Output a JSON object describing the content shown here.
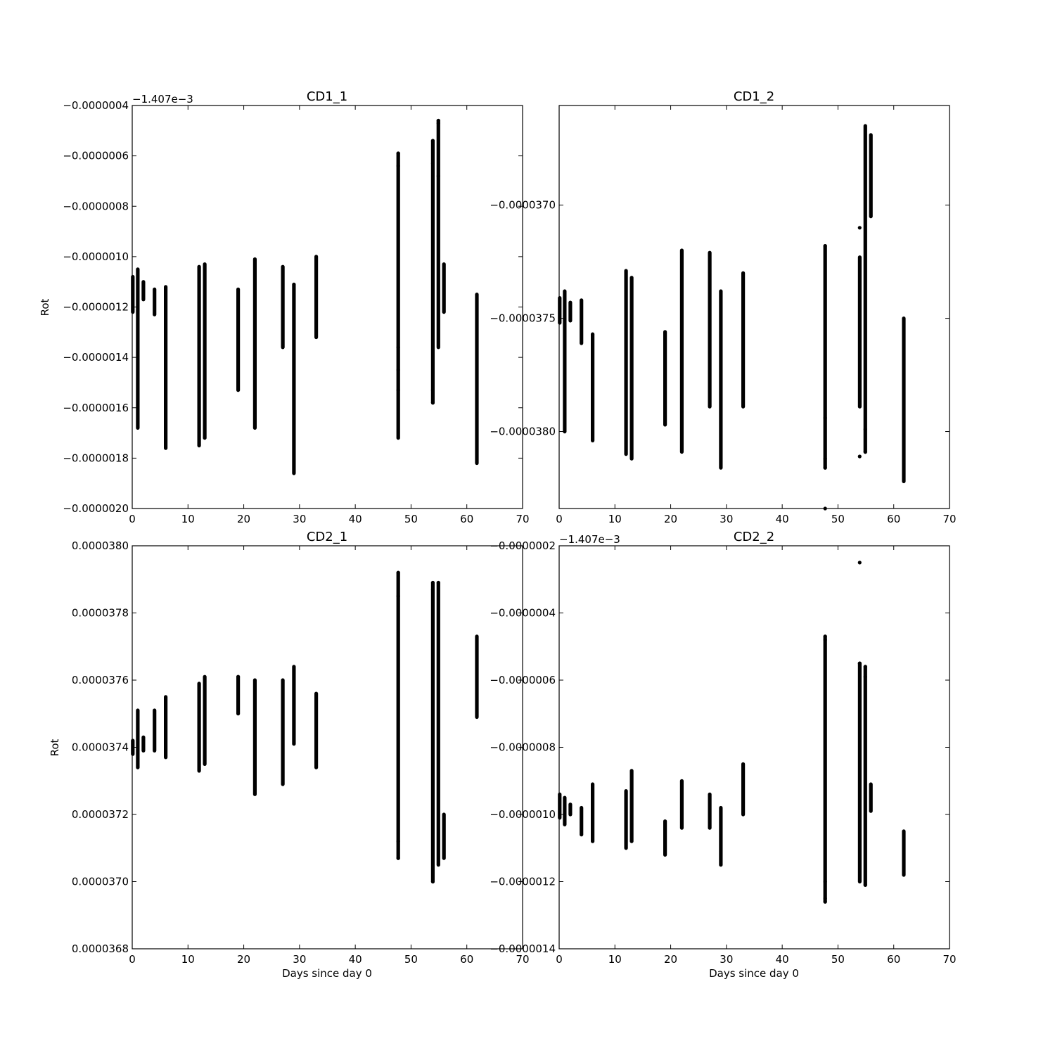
{
  "figure": {
    "background": "#ffffff",
    "marker_color": "#000000"
  },
  "chart_data": [
    {
      "type": "scatter",
      "title": "CD1_1",
      "xlabel": "",
      "ylabel": "Rot",
      "offset_text": "−1.407e−3",
      "xlim": [
        0,
        70
      ],
      "ylim": [
        -2e-06,
        -4e-07
      ],
      "xticks": [
        0,
        10,
        20,
        30,
        40,
        50,
        60,
        70
      ],
      "xtick_labels": [
        "0",
        "10",
        "20",
        "30",
        "40",
        "50",
        "60",
        "70"
      ],
      "yticks": [
        -2e-06,
        -1.8e-06,
        -1.6e-06,
        -1.4e-06,
        -1.2e-06,
        -1e-06,
        -8e-07,
        -6e-07,
        -4e-07
      ],
      "ytick_labels": [
        "−0.0000020",
        "−0.0000018",
        "−0.0000016",
        "−0.0000014",
        "−0.0000012",
        "−0.0000010",
        "−0.0000008",
        "−0.0000006",
        "−0.0000004"
      ],
      "grid": false,
      "columns": [
        {
          "x": 0.1,
          "ymin": -1.22e-06,
          "ymax": -1.08e-06,
          "extra": []
        },
        {
          "x": 1.0,
          "ymin": -1.68e-06,
          "ymax": -1.05e-06,
          "extra": []
        },
        {
          "x": 2.0,
          "ymin": -1.17e-06,
          "ymax": -1.1e-06,
          "extra": []
        },
        {
          "x": 4.0,
          "ymin": -1.23e-06,
          "ymax": -1.13e-06,
          "extra": []
        },
        {
          "x": 6.0,
          "ymin": -1.76e-06,
          "ymax": -1.12e-06,
          "extra": []
        },
        {
          "x": 12.0,
          "ymin": -1.75e-06,
          "ymax": -1.04e-06,
          "extra": []
        },
        {
          "x": 13.0,
          "ymin": -1.72e-06,
          "ymax": -1.03e-06,
          "extra": []
        },
        {
          "x": 19.0,
          "ymin": -1.53e-06,
          "ymax": -1.13e-06,
          "extra": []
        },
        {
          "x": 22.0,
          "ymin": -1.68e-06,
          "ymax": -1.01e-06,
          "extra": []
        },
        {
          "x": 27.0,
          "ymin": -1.36e-06,
          "ymax": -1.04e-06,
          "extra": []
        },
        {
          "x": 29.0,
          "ymin": -1.86e-06,
          "ymax": -1.11e-06,
          "extra": []
        },
        {
          "x": 33.0,
          "ymin": -1.32e-06,
          "ymax": -1e-06,
          "extra": []
        },
        {
          "x": 47.7,
          "ymin": -1.72e-06,
          "ymax": -5.9e-07,
          "extra": [
            -5.9e-07,
            -6.4e-07,
            -1.36e-06,
            -1.45e-06,
            -1.53e-06
          ]
        },
        {
          "x": 53.9,
          "ymin": -1.58e-06,
          "ymax": -5.4e-07,
          "extra": [
            -5.4e-07,
            -6.3e-07,
            -1.53e-06,
            -1.58e-06
          ]
        },
        {
          "x": 54.9,
          "ymin": -1.36e-06,
          "ymax": -4.6e-07,
          "extra": [
            -4.6e-07,
            -4.7e-07,
            -6.8e-07
          ]
        },
        {
          "x": 55.9,
          "ymin": -1.22e-06,
          "ymax": -1.03e-06,
          "extra": []
        },
        {
          "x": 61.8,
          "ymin": -1.82e-06,
          "ymax": -1.15e-06,
          "extra": []
        }
      ]
    },
    {
      "type": "scatter",
      "title": "CD1_2",
      "xlabel": "",
      "ylabel": "",
      "offset_text": "",
      "xlim": [
        0,
        70
      ],
      "ylim": [
        -3.834e-05,
        -3.656e-05
      ],
      "xticks": [
        0,
        10,
        20,
        30,
        40,
        50,
        60,
        70
      ],
      "xtick_labels": [
        "0",
        "10",
        "20",
        "30",
        "40",
        "50",
        "60",
        "70"
      ],
      "yticks": [
        -3.8e-05,
        -3.75e-05,
        -3.7e-05
      ],
      "ytick_labels": [
        "−0.0000380",
        "−0.0000375",
        "−0.0000370"
      ],
      "grid": false,
      "columns": [
        {
          "x": 0.1,
          "ymin": -3.752e-05,
          "ymax": -3.741e-05,
          "extra": []
        },
        {
          "x": 1.0,
          "ymin": -3.8e-05,
          "ymax": -3.738e-05,
          "extra": []
        },
        {
          "x": 2.0,
          "ymin": -3.751e-05,
          "ymax": -3.743e-05,
          "extra": []
        },
        {
          "x": 4.0,
          "ymin": -3.761e-05,
          "ymax": -3.742e-05,
          "extra": []
        },
        {
          "x": 6.0,
          "ymin": -3.804e-05,
          "ymax": -3.757e-05,
          "extra": []
        },
        {
          "x": 12.0,
          "ymin": -3.81e-05,
          "ymax": -3.729e-05,
          "extra": []
        },
        {
          "x": 13.0,
          "ymin": -3.812e-05,
          "ymax": -3.732e-05,
          "extra": []
        },
        {
          "x": 19.0,
          "ymin": -3.797e-05,
          "ymax": -3.756e-05,
          "extra": []
        },
        {
          "x": 22.0,
          "ymin": -3.809e-05,
          "ymax": -3.72e-05,
          "extra": []
        },
        {
          "x": 27.0,
          "ymin": -3.789e-05,
          "ymax": -3.721e-05,
          "extra": []
        },
        {
          "x": 29.0,
          "ymin": -3.816e-05,
          "ymax": -3.738e-05,
          "extra": []
        },
        {
          "x": 33.0,
          "ymin": -3.789e-05,
          "ymax": -3.73e-05,
          "extra": []
        },
        {
          "x": 47.7,
          "ymin": -3.816e-05,
          "ymax": -3.718e-05,
          "extra": [
            -3.718e-05,
            -3.834e-05,
            -3.794e-05,
            -3.812e-05,
            -3.816e-05
          ]
        },
        {
          "x": 53.9,
          "ymin": -3.789e-05,
          "ymax": -3.723e-05,
          "extra": [
            -3.71e-05,
            -3.811e-05
          ]
        },
        {
          "x": 54.9,
          "ymin": -3.809e-05,
          "ymax": -3.665e-05,
          "extra": [
            -3.799e-05,
            -3.809e-05
          ]
        },
        {
          "x": 55.9,
          "ymin": -3.705e-05,
          "ymax": -3.669e-05,
          "extra": []
        },
        {
          "x": 61.8,
          "ymin": -3.822e-05,
          "ymax": -3.75e-05,
          "extra": []
        }
      ]
    },
    {
      "type": "scatter",
      "title": "CD2_1",
      "xlabel": "Days since day 0",
      "ylabel": "Rot",
      "offset_text": "",
      "xlim": [
        0,
        70
      ],
      "ylim": [
        3.68e-05,
        3.8e-05
      ],
      "xticks": [
        0,
        10,
        20,
        30,
        40,
        50,
        60,
        70
      ],
      "xtick_labels": [
        "0",
        "10",
        "20",
        "30",
        "40",
        "50",
        "60",
        "70"
      ],
      "yticks": [
        3.68e-05,
        3.7e-05,
        3.72e-05,
        3.74e-05,
        3.76e-05,
        3.78e-05,
        3.8e-05
      ],
      "ytick_labels": [
        "0.0000368",
        "0.0000370",
        "0.0000372",
        "0.0000374",
        "0.0000376",
        "0.0000378",
        "0.0000380"
      ],
      "grid": false,
      "columns": [
        {
          "x": 0.1,
          "ymin": 3.738e-05,
          "ymax": 3.742e-05,
          "extra": []
        },
        {
          "x": 1.0,
          "ymin": 3.734e-05,
          "ymax": 3.751e-05,
          "extra": []
        },
        {
          "x": 2.0,
          "ymin": 3.739e-05,
          "ymax": 3.743e-05,
          "extra": []
        },
        {
          "x": 4.0,
          "ymin": 3.739e-05,
          "ymax": 3.751e-05,
          "extra": []
        },
        {
          "x": 6.0,
          "ymin": 3.737e-05,
          "ymax": 3.755e-05,
          "extra": []
        },
        {
          "x": 12.0,
          "ymin": 3.733e-05,
          "ymax": 3.759e-05,
          "extra": []
        },
        {
          "x": 13.0,
          "ymin": 3.735e-05,
          "ymax": 3.761e-05,
          "extra": []
        },
        {
          "x": 19.0,
          "ymin": 3.75e-05,
          "ymax": 3.761e-05,
          "extra": [
            3.761e-05
          ]
        },
        {
          "x": 22.0,
          "ymin": 3.726e-05,
          "ymax": 3.76e-05,
          "extra": []
        },
        {
          "x": 27.0,
          "ymin": 3.729e-05,
          "ymax": 3.76e-05,
          "extra": []
        },
        {
          "x": 29.0,
          "ymin": 3.741e-05,
          "ymax": 3.764e-05,
          "extra": []
        },
        {
          "x": 33.0,
          "ymin": 3.734e-05,
          "ymax": 3.756e-05,
          "extra": []
        },
        {
          "x": 47.7,
          "ymin": 3.707e-05,
          "ymax": 3.792e-05,
          "extra": [
            3.707e-05,
            3.712e-05,
            3.785e-05,
            3.792e-05
          ]
        },
        {
          "x": 53.9,
          "ymin": 3.7e-05,
          "ymax": 3.789e-05,
          "extra": [
            3.7e-05,
            3.789e-05,
            3.787e-05
          ]
        },
        {
          "x": 54.9,
          "ymin": 3.705e-05,
          "ymax": 3.789e-05,
          "extra": [
            3.789e-05
          ]
        },
        {
          "x": 55.9,
          "ymin": 3.707e-05,
          "ymax": 3.72e-05,
          "extra": []
        },
        {
          "x": 61.8,
          "ymin": 3.749e-05,
          "ymax": 3.773e-05,
          "extra": []
        }
      ]
    },
    {
      "type": "scatter",
      "title": "CD2_2",
      "xlabel": "Days since day 0",
      "ylabel": "",
      "offset_text": "−1.407e−3",
      "xlim": [
        0,
        70
      ],
      "ylim": [
        -1.4e-06,
        -2e-07
      ],
      "xticks": [
        0,
        10,
        20,
        30,
        40,
        50,
        60,
        70
      ],
      "xtick_labels": [
        "0",
        "10",
        "20",
        "30",
        "40",
        "50",
        "60",
        "70"
      ],
      "yticks": [
        -1.4e-06,
        -1.2e-06,
        -1e-06,
        -8e-07,
        -6e-07,
        -4e-07,
        -2e-07
      ],
      "ytick_labels": [
        "−0.0000014",
        "−0.0000012",
        "−0.0000010",
        "−0.0000008",
        "−0.0000006",
        "−0.0000004",
        "−0.0000002"
      ],
      "grid": false,
      "columns": [
        {
          "x": 0.1,
          "ymin": -1.01e-06,
          "ymax": -9.4e-07,
          "extra": []
        },
        {
          "x": 1.0,
          "ymin": -1.03e-06,
          "ymax": -9.5e-07,
          "extra": []
        },
        {
          "x": 2.0,
          "ymin": -1e-06,
          "ymax": -9.7e-07,
          "extra": []
        },
        {
          "x": 4.0,
          "ymin": -1.06e-06,
          "ymax": -9.8e-07,
          "extra": []
        },
        {
          "x": 6.0,
          "ymin": -1.08e-06,
          "ymax": -9.1e-07,
          "extra": []
        },
        {
          "x": 12.0,
          "ymin": -1.1e-06,
          "ymax": -9.3e-07,
          "extra": []
        },
        {
          "x": 13.0,
          "ymin": -1.08e-06,
          "ymax": -8.7e-07,
          "extra": []
        },
        {
          "x": 19.0,
          "ymin": -1.12e-06,
          "ymax": -1.02e-06,
          "extra": []
        },
        {
          "x": 22.0,
          "ymin": -1.04e-06,
          "ymax": -9e-07,
          "extra": []
        },
        {
          "x": 27.0,
          "ymin": -1.04e-06,
          "ymax": -9.4e-07,
          "extra": []
        },
        {
          "x": 29.0,
          "ymin": -1.15e-06,
          "ymax": -9.8e-07,
          "extra": []
        },
        {
          "x": 33.0,
          "ymin": -1e-06,
          "ymax": -8.5e-07,
          "extra": []
        },
        {
          "x": 47.7,
          "ymin": -1.26e-06,
          "ymax": -4.7e-07,
          "extra": [
            -4.7e-07,
            -4.8e-07,
            -1.2e-06,
            -1.25e-06,
            -1.26e-06
          ]
        },
        {
          "x": 53.9,
          "ymin": -1.2e-06,
          "ymax": -5.5e-07,
          "extra": [
            -2.5e-07,
            -5.5e-07
          ]
        },
        {
          "x": 54.9,
          "ymin": -1.21e-06,
          "ymax": -5.6e-07,
          "extra": [
            -1.21e-06,
            -5.6e-07,
            -5.9e-07
          ]
        },
        {
          "x": 55.9,
          "ymin": -9.9e-07,
          "ymax": -9.1e-07,
          "extra": []
        },
        {
          "x": 61.8,
          "ymin": -1.18e-06,
          "ymax": -1.05e-06,
          "extra": []
        }
      ]
    }
  ]
}
